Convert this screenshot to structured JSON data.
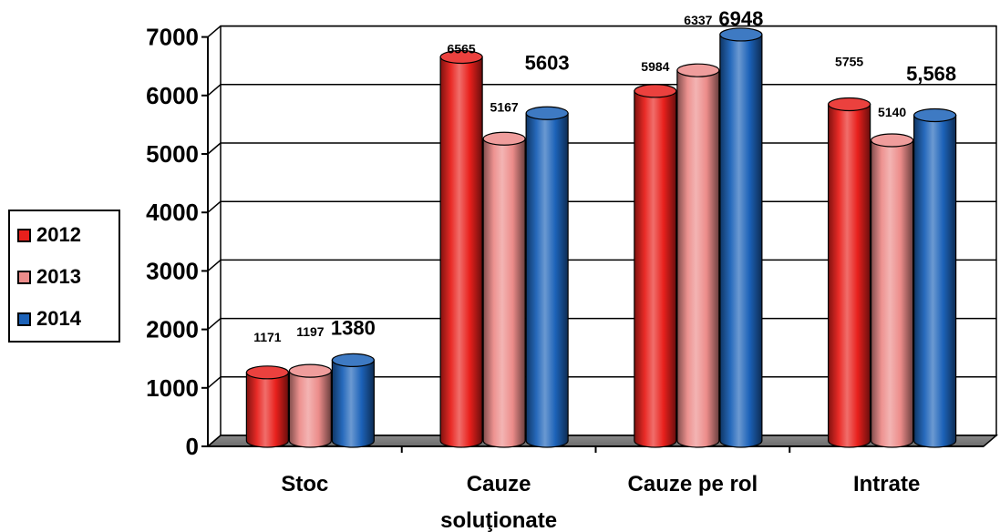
{
  "chart_data": {
    "type": "bar",
    "categories": [
      "Stoc",
      "Cauze soluţionate",
      "Cauze pe rol",
      "Intrate"
    ],
    "category_lines": [
      [
        "Stoc"
      ],
      [
        "Cauze",
        "soluţionate"
      ],
      [
        "Cauze pe rol"
      ],
      [
        "Intrate"
      ]
    ],
    "series": [
      {
        "name": "2012",
        "color": "#e8201c",
        "values": [
          1171,
          6565,
          5984,
          5755
        ],
        "labels": [
          "1171",
          "6565",
          "5984",
          "5755"
        ]
      },
      {
        "name": "2013",
        "color": "#ec8c8a",
        "values": [
          1197,
          5167,
          6337,
          5140
        ],
        "labels": [
          "1197",
          "5167",
          "6337",
          "5140"
        ]
      },
      {
        "name": "2014",
        "color": "#1c62b8",
        "values": [
          1380,
          5603,
          6948,
          5568
        ],
        "labels": [
          "1380",
          "5603",
          "6948",
          "5,568"
        ]
      }
    ],
    "ylim": [
      0,
      7000
    ],
    "yticks": [
      0,
      1000,
      2000,
      3000,
      4000,
      5000,
      6000,
      7000
    ],
    "grid": true,
    "style": "3d-cylinder",
    "legend_position": "left"
  }
}
